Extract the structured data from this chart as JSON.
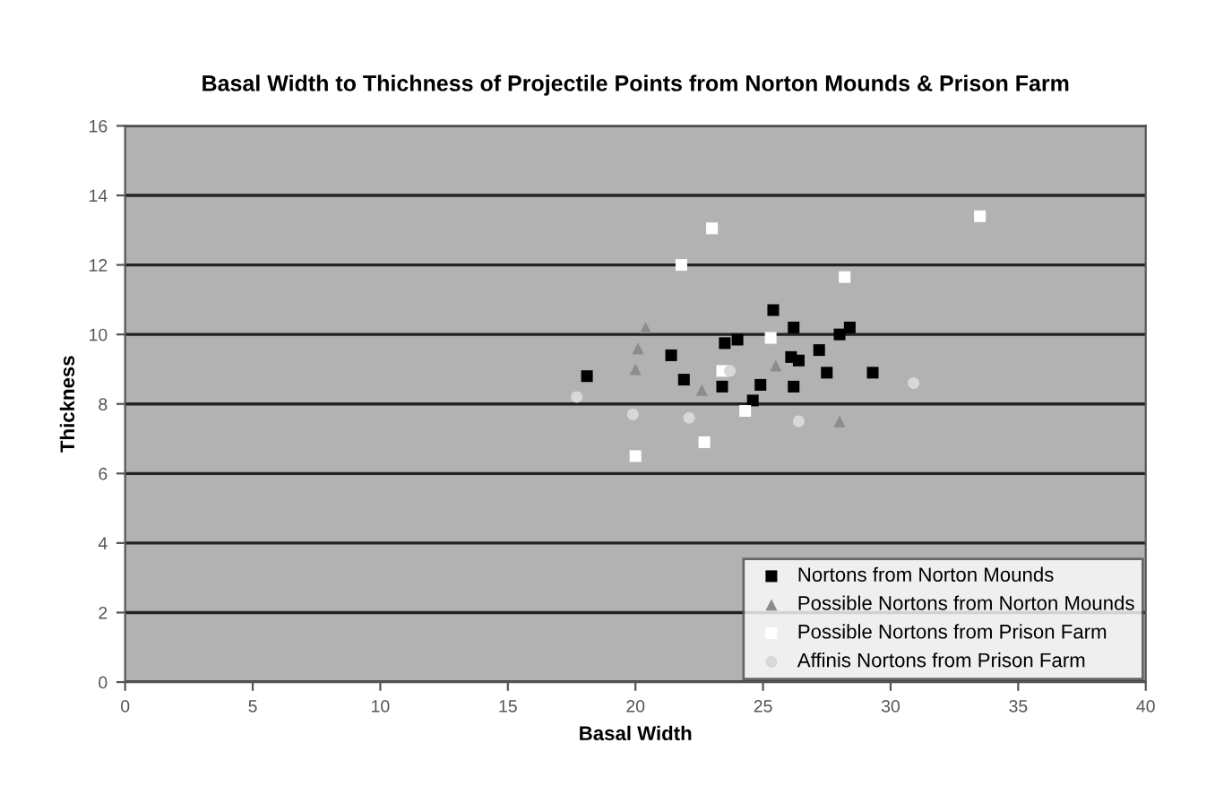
{
  "chart_data": {
    "type": "scatter",
    "title": "Basal Width to Thichness of Projectile Points from Norton Mounds & Prison Farm",
    "xlabel": "Basal Width",
    "ylabel": "Thickness",
    "xlim": [
      0,
      40
    ],
    "xticks": [
      0,
      5,
      10,
      15,
      20,
      25,
      30,
      35,
      40
    ],
    "ylim": [
      0,
      16
    ],
    "yticks": [
      0,
      2,
      4,
      6,
      8,
      10,
      12,
      14,
      16
    ],
    "grid": "y",
    "legend": "bottom right",
    "series": [
      {
        "name": "Nortons from Norton Mounds",
        "color": "#000000",
        "marker": "square",
        "x": [
          18.1,
          21.4,
          21.9,
          23.5,
          24.0,
          23.4,
          24.9,
          24.6,
          25.4,
          26.2,
          26.1,
          26.4,
          26.2,
          27.2,
          27.5,
          28.0,
          28.4,
          29.3
        ],
        "values": [
          8.8,
          9.4,
          8.7,
          9.75,
          9.85,
          8.5,
          8.55,
          8.1,
          10.7,
          10.2,
          9.35,
          9.25,
          8.5,
          9.55,
          8.9,
          10.0,
          10.2,
          8.9
        ]
      },
      {
        "name": "Possible Nortons from Norton Mounds",
        "color": "#8c8c8c",
        "marker": "triangle",
        "x": [
          20.4,
          20.1,
          20.0,
          22.6,
          25.5,
          28.0
        ],
        "values": [
          10.2,
          9.6,
          9.0,
          8.4,
          9.1,
          7.5
        ]
      },
      {
        "name": "Possible Nortons from Prison Farm",
        "color": "#ffffff",
        "marker": "square",
        "x": [
          23.0,
          21.8,
          28.2,
          25.3,
          23.4,
          24.3,
          22.7,
          20.0,
          33.5
        ],
        "values": [
          13.05,
          12.0,
          11.65,
          9.9,
          8.95,
          7.8,
          6.9,
          6.5,
          13.4
        ]
      },
      {
        "name": "Affinis Nortons from Prison Farm",
        "color": "#d8d8d8",
        "marker": "circle",
        "x": [
          17.7,
          19.9,
          22.1,
          26.4,
          30.9,
          23.7
        ],
        "values": [
          8.2,
          7.7,
          7.6,
          7.5,
          8.6,
          8.95
        ]
      }
    ]
  }
}
